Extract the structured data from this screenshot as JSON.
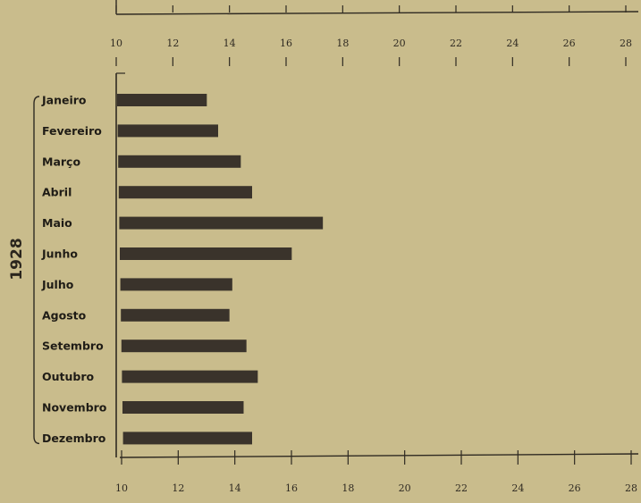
{
  "chart_data": {
    "type": "bar",
    "orientation": "horizontal",
    "group_label": "1928",
    "categories": [
      "Janeiro",
      "Fevereiro",
      "Março",
      "Abril",
      "Maio",
      "Junho",
      "Julho",
      "Agosto",
      "Setembro",
      "Outubro",
      "Novembro",
      "Dezembro"
    ],
    "values": [
      13.2,
      13.6,
      14.4,
      14.8,
      17.3,
      16.2,
      14.1,
      14.0,
      14.6,
      15.0,
      14.5,
      14.8
    ],
    "xlim": [
      10,
      28
    ],
    "xticks": [
      "10",
      "12",
      "14",
      "16",
      "18",
      "20",
      "22",
      "24",
      "26",
      "28"
    ],
    "grid": false,
    "title": "",
    "xlabel": "",
    "ylabel": "",
    "colors": {
      "bar": "#3a332b",
      "background": "#c9bc8c",
      "axis": "#2f2a22"
    }
  }
}
